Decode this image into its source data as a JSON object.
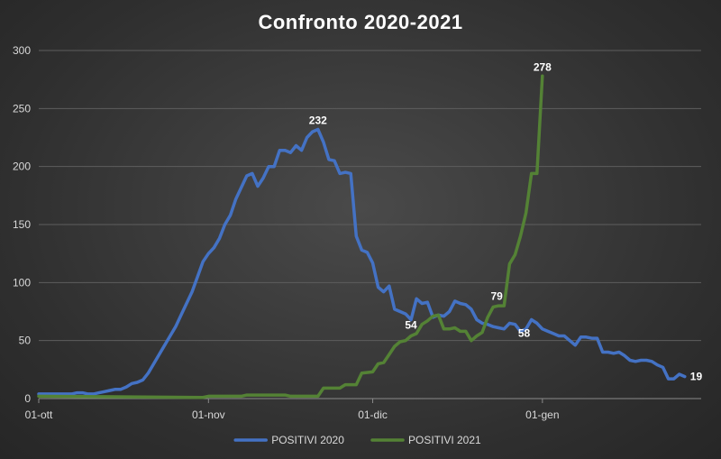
{
  "chart_data": {
    "type": "line",
    "title": "Confronto 2020-2021",
    "xlabel": "",
    "ylabel": "",
    "ylim": [
      0,
      300
    ],
    "yticks": [
      0,
      50,
      100,
      150,
      200,
      250,
      300
    ],
    "x_range_days": [
      0,
      121
    ],
    "xticks": [
      {
        "day": 0,
        "label": "01-ott"
      },
      {
        "day": 31,
        "label": "01-nov"
      },
      {
        "day": 61,
        "label": "01-dic"
      },
      {
        "day": 92,
        "label": "01-gen"
      }
    ],
    "grid": true,
    "legend_position": "bottom",
    "series": [
      {
        "name": "POSITIVI 2020",
        "color": "#4472c4",
        "points": [
          [
            0,
            4
          ],
          [
            6,
            4
          ],
          [
            7,
            5
          ],
          [
            8,
            5
          ],
          [
            9,
            4
          ],
          [
            10,
            4
          ],
          [
            11,
            5
          ],
          [
            12,
            6
          ],
          [
            13,
            7
          ],
          [
            14,
            8
          ],
          [
            15,
            8
          ],
          [
            16,
            10
          ],
          [
            17,
            13
          ],
          [
            18,
            14
          ],
          [
            19,
            16
          ],
          [
            20,
            22
          ],
          [
            21,
            30
          ],
          [
            22,
            38
          ],
          [
            23,
            46
          ],
          [
            24,
            54
          ],
          [
            25,
            62
          ],
          [
            26,
            72
          ],
          [
            27,
            82
          ],
          [
            28,
            92
          ],
          [
            29,
            105
          ],
          [
            30,
            118
          ],
          [
            31,
            125
          ],
          [
            32,
            130
          ],
          [
            33,
            138
          ],
          [
            34,
            150
          ],
          [
            35,
            158
          ],
          [
            36,
            172
          ],
          [
            37,
            182
          ],
          [
            38,
            192
          ],
          [
            39,
            194
          ],
          [
            40,
            183
          ],
          [
            41,
            190
          ],
          [
            42,
            200
          ],
          [
            43,
            200
          ],
          [
            44,
            214
          ],
          [
            45,
            214
          ],
          [
            46,
            212
          ],
          [
            47,
            218
          ],
          [
            48,
            214
          ],
          [
            49,
            225
          ],
          [
            50,
            230
          ],
          [
            51,
            232
          ],
          [
            52,
            221
          ],
          [
            53,
            206
          ],
          [
            54,
            205
          ],
          [
            55,
            194
          ],
          [
            56,
            195
          ],
          [
            57,
            194
          ],
          [
            58,
            140
          ],
          [
            59,
            128
          ],
          [
            60,
            126
          ],
          [
            61,
            117
          ],
          [
            62,
            96
          ],
          [
            63,
            92
          ],
          [
            64,
            97
          ],
          [
            65,
            77
          ],
          [
            66,
            75
          ],
          [
            67,
            73
          ],
          [
            68,
            68
          ],
          [
            69,
            86
          ],
          [
            70,
            82
          ],
          [
            71,
            83
          ],
          [
            72,
            70
          ],
          [
            73,
            72
          ],
          [
            74,
            71
          ],
          [
            75,
            75
          ],
          [
            76,
            84
          ],
          [
            77,
            82
          ],
          [
            78,
            81
          ],
          [
            79,
            77
          ],
          [
            80,
            68
          ],
          [
            81,
            65
          ],
          [
            82,
            64
          ],
          [
            83,
            62
          ],
          [
            84,
            61
          ],
          [
            85,
            60
          ],
          [
            86,
            65
          ],
          [
            87,
            64
          ],
          [
            88,
            58
          ],
          [
            89,
            60
          ],
          [
            90,
            68
          ],
          [
            91,
            65
          ],
          [
            92,
            60
          ],
          [
            93,
            58
          ],
          [
            94,
            56
          ],
          [
            95,
            54
          ],
          [
            96,
            54
          ],
          [
            97,
            50
          ],
          [
            98,
            46
          ],
          [
            99,
            53
          ],
          [
            100,
            53
          ],
          [
            101,
            52
          ],
          [
            102,
            52
          ],
          [
            103,
            40
          ],
          [
            104,
            40
          ],
          [
            105,
            39
          ],
          [
            106,
            40
          ],
          [
            107,
            37
          ],
          [
            108,
            33
          ],
          [
            109,
            32
          ],
          [
            110,
            33
          ],
          [
            111,
            33
          ],
          [
            112,
            32
          ],
          [
            113,
            29
          ],
          [
            114,
            27
          ],
          [
            115,
            17
          ],
          [
            116,
            17
          ],
          [
            117,
            21
          ],
          [
            118,
            19
          ]
        ],
        "labels": [
          {
            "day": 51,
            "value": 232
          },
          {
            "day": 88,
            "value": 58
          },
          {
            "day": 118,
            "value": 19
          }
        ]
      },
      {
        "name": "POSITIVI 2021",
        "color": "#548235",
        "points": [
          [
            0,
            2
          ],
          [
            30,
            1
          ],
          [
            31,
            2
          ],
          [
            37,
            2
          ],
          [
            38,
            3
          ],
          [
            45,
            3
          ],
          [
            46,
            2
          ],
          [
            51,
            2
          ],
          [
            52,
            9
          ],
          [
            55,
            9
          ],
          [
            56,
            12
          ],
          [
            58,
            12
          ],
          [
            59,
            22
          ],
          [
            61,
            23
          ],
          [
            62,
            30
          ],
          [
            63,
            31
          ],
          [
            64,
            38
          ],
          [
            65,
            45
          ],
          [
            66,
            49
          ],
          [
            67,
            50
          ],
          [
            68,
            54
          ],
          [
            69,
            56
          ],
          [
            70,
            64
          ],
          [
            71,
            67
          ],
          [
            72,
            71
          ],
          [
            73,
            72
          ],
          [
            74,
            60
          ],
          [
            75,
            60
          ],
          [
            76,
            61
          ],
          [
            77,
            58
          ],
          [
            78,
            58
          ],
          [
            79,
            50
          ],
          [
            80,
            54
          ],
          [
            81,
            57
          ],
          [
            82,
            70
          ],
          [
            83,
            79
          ],
          [
            84,
            80
          ],
          [
            85,
            80
          ],
          [
            86,
            116
          ],
          [
            87,
            124
          ],
          [
            88,
            140
          ],
          [
            89,
            160
          ],
          [
            90,
            194
          ],
          [
            91,
            194
          ],
          [
            92,
            278
          ]
        ],
        "labels": [
          {
            "day": 68,
            "value": 54
          },
          {
            "day": 83,
            "value": 79
          },
          {
            "day": 92,
            "value": 278
          }
        ]
      }
    ]
  }
}
